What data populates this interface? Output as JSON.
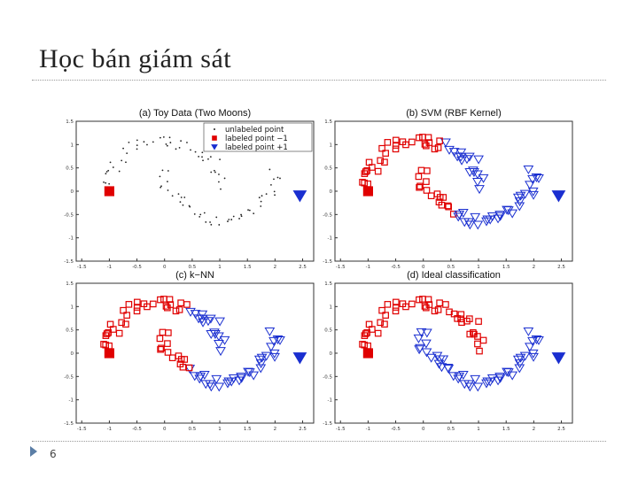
{
  "slide": {
    "title": "Học bán giám sát",
    "page_number": "6"
  },
  "colors": {
    "labeled_neg": "#e00000",
    "labeled_pos": "#1a2fd0",
    "unlabeled": "#222222"
  },
  "axes": {
    "x_ticks": [
      "-1.5",
      "-1",
      "-0.5",
      "0",
      "0.5",
      "1",
      "1.5",
      "2",
      "2.5"
    ],
    "y_ticks": [
      "1.5",
      "1",
      "0.5",
      "0",
      "-0.5",
      "-1",
      "-1.5"
    ]
  },
  "legend": {
    "unlabeled": "unlabeled point",
    "neg": "labeled point −1",
    "pos": "labeled point +1"
  },
  "chart_data": [
    {
      "type": "scatter",
      "title": "(a) Toy Data (Two Moons)",
      "xlim": [
        -1.6,
        2.7
      ],
      "ylim": [
        -1.5,
        1.5
      ],
      "labeled": [
        {
          "x": -1.0,
          "y": 0.0,
          "label": -1
        },
        {
          "x": 2.45,
          "y": -0.1,
          "label": 1
        }
      ],
      "series": [
        {
          "name": "unlabeled point",
          "marker": "dot"
        }
      ]
    },
    {
      "type": "scatter",
      "title": "(b) SVM (RBF Kernel)",
      "xlim": [
        -1.6,
        2.7
      ],
      "ylim": [
        -1.5,
        1.5
      ],
      "labeled": [
        {
          "x": -1.0,
          "y": 0.0,
          "label": -1
        },
        {
          "x": 2.45,
          "y": -0.1,
          "label": 1
        }
      ],
      "series": [
        {
          "name": "class -1",
          "marker": "square"
        },
        {
          "name": "class +1",
          "marker": "triangle"
        }
      ]
    },
    {
      "type": "scatter",
      "title": "(c) k−NN",
      "xlim": [
        -1.6,
        2.7
      ],
      "ylim": [
        -1.5,
        1.5
      ],
      "labeled": [
        {
          "x": -1.0,
          "y": 0.0,
          "label": -1
        },
        {
          "x": 2.45,
          "y": -0.1,
          "label": 1
        }
      ],
      "series": [
        {
          "name": "class -1",
          "marker": "square"
        },
        {
          "name": "class +1",
          "marker": "triangle"
        }
      ]
    },
    {
      "type": "scatter",
      "title": "(d) Ideal classification",
      "xlim": [
        -1.6,
        2.7
      ],
      "ylim": [
        -1.5,
        1.5
      ],
      "labeled": [
        {
          "x": -1.0,
          "y": 0.0,
          "label": -1
        },
        {
          "x": 2.45,
          "y": -0.1,
          "label": 1
        }
      ],
      "series": [
        {
          "name": "class -1",
          "marker": "square"
        },
        {
          "name": "class +1",
          "marker": "triangle"
        }
      ]
    }
  ]
}
